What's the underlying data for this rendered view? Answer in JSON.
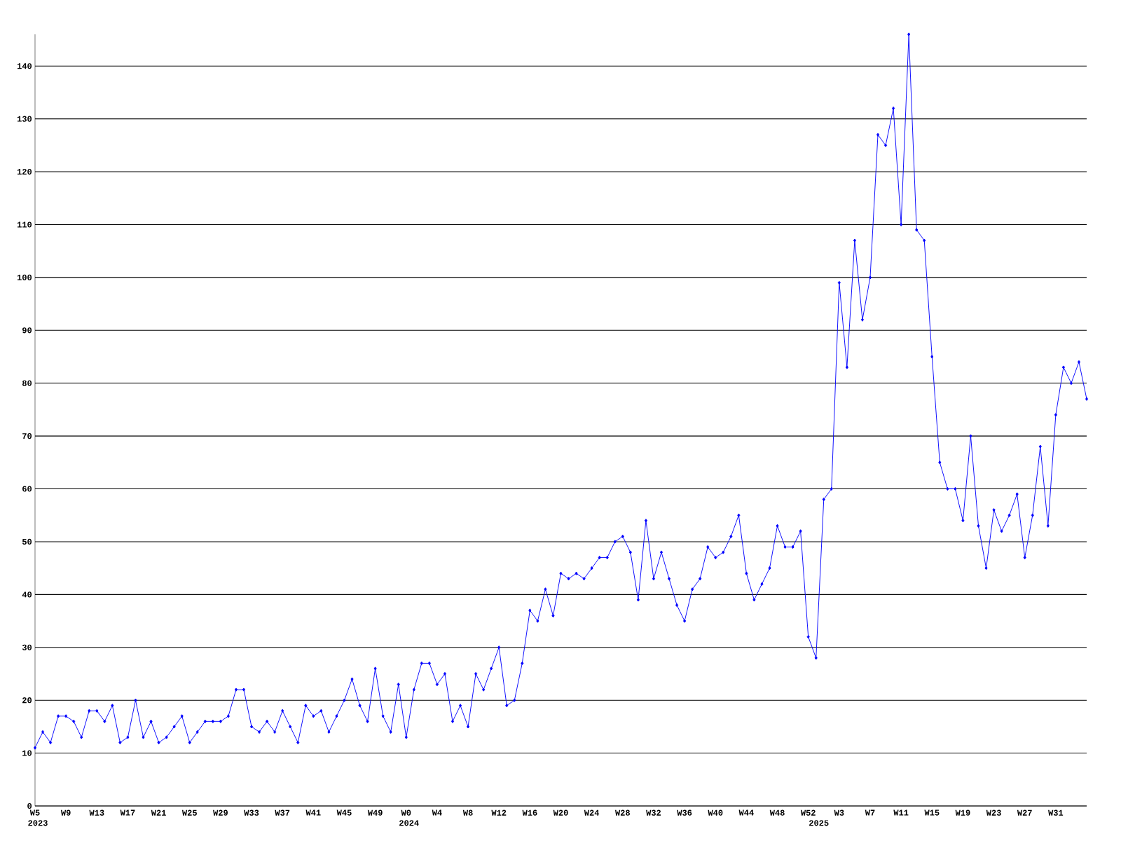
{
  "chart_data": {
    "type": "line",
    "categories": [
      "W5",
      null,
      null,
      null,
      "W9",
      null,
      null,
      null,
      "W13",
      null,
      null,
      null,
      "W17",
      null,
      null,
      null,
      "W21",
      null,
      null,
      null,
      "W25",
      null,
      null,
      null,
      "W29",
      null,
      null,
      null,
      "W33",
      null,
      null,
      null,
      "W37",
      null,
      null,
      null,
      "W41",
      null,
      null,
      null,
      "W45",
      null,
      null,
      null,
      "W49",
      null,
      null,
      null,
      "W0",
      null,
      null,
      null,
      "W4",
      null,
      null,
      null,
      "W8",
      null,
      null,
      null,
      "W12",
      null,
      null,
      null,
      "W16",
      null,
      null,
      null,
      "W20",
      null,
      null,
      null,
      "W24",
      null,
      null,
      null,
      "W28",
      null,
      null,
      null,
      "W32",
      null,
      null,
      null,
      "W36",
      null,
      null,
      null,
      "W40",
      null,
      null,
      null,
      "W44",
      null,
      null,
      null,
      "W48",
      null,
      null,
      null,
      "W52",
      null,
      null,
      null,
      "W3",
      null,
      null,
      null,
      "W7",
      null,
      null,
      null,
      "W11",
      null,
      null,
      null,
      "W15",
      null,
      null,
      null,
      "W19",
      null,
      null,
      null,
      "W23",
      null,
      null,
      null,
      "W27",
      null,
      null,
      null,
      "W31",
      null,
      null,
      null,
      null
    ],
    "values": [
      11,
      14,
      12,
      17,
      17,
      16,
      13,
      18,
      18,
      16,
      19,
      12,
      13,
      20,
      13,
      16,
      12,
      13,
      15,
      17,
      12,
      14,
      16,
      16,
      16,
      17,
      22,
      22,
      15,
      14,
      16,
      14,
      18,
      15,
      12,
      19,
      17,
      18,
      14,
      17,
      20,
      24,
      19,
      16,
      26,
      17,
      14,
      23,
      13,
      22,
      27,
      27,
      23,
      25,
      16,
      19,
      15,
      25,
      22,
      26,
      30,
      19,
      20,
      27,
      37,
      35,
      41,
      36,
      44,
      43,
      44,
      43,
      45,
      47,
      47,
      50,
      51,
      48,
      39,
      54,
      43,
      48,
      43,
      38,
      35,
      41,
      43,
      49,
      47,
      48,
      51,
      55,
      44,
      39,
      42,
      45,
      53,
      49,
      49,
      52,
      32,
      28,
      58,
      60,
      99,
      83,
      107,
      92,
      100,
      127,
      125,
      132,
      110,
      146,
      109,
      107,
      85,
      65,
      60,
      60,
      54,
      70,
      53,
      45,
      56,
      52,
      55,
      59,
      47,
      55,
      68,
      53,
      74,
      83,
      80,
      84,
      77
    ],
    "color": "#0000ff",
    "marker": "diamond",
    "ylim": [
      0,
      146
    ],
    "yticks": [
      0,
      10,
      20,
      30,
      40,
      50,
      60,
      70,
      80,
      90,
      100,
      110,
      120,
      130,
      140
    ],
    "grid": "y",
    "annotations": [
      "2023",
      "2024",
      "2025"
    ]
  }
}
